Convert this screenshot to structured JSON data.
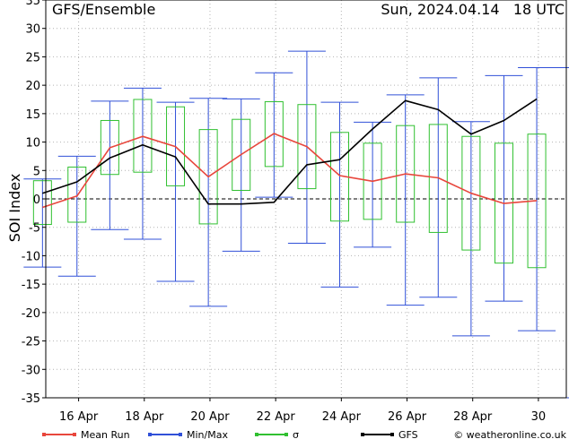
{
  "chart_data": {
    "type": "line",
    "title": "GFS/Ensemble",
    "run_label": "Sun, 2024.04.14   18 UTC",
    "ylabel": "SOI Index",
    "ylim": [
      -35,
      35
    ],
    "yticks": [
      -35,
      -30,
      -25,
      -20,
      -15,
      -10,
      -5,
      0,
      5,
      10,
      15,
      20,
      25,
      30,
      35
    ],
    "xlim": [
      15.0,
      30.85
    ],
    "xticks": [
      {
        "x": 16,
        "label": "16 Apr"
      },
      {
        "x": 18,
        "label": "18 Apr"
      },
      {
        "x": 20,
        "label": "20 Apr"
      },
      {
        "x": 22,
        "label": "22 Apr"
      },
      {
        "x": 24,
        "label": "24 Apr"
      },
      {
        "x": 26,
        "label": "26 Apr"
      },
      {
        "x": 28,
        "label": "28 Apr"
      },
      {
        "x": 30,
        "label": "30"
      }
    ],
    "x": [
      14.9,
      15.95,
      16.95,
      17.95,
      18.95,
      19.95,
      20.95,
      21.95,
      22.95,
      23.95,
      24.95,
      25.95,
      26.95,
      27.95,
      28.95,
      29.95,
      30.85
    ],
    "series": [
      {
        "name": "Mean Run",
        "color": "#e8463c",
        "values": [
          -1.5,
          0.5,
          9.0,
          11.0,
          9.2,
          3.9,
          7.8,
          11.5,
          9.2,
          4.1,
          3.1,
          4.4,
          3.7,
          1.0,
          -0.8,
          -0.3,
          null
        ]
      },
      {
        "name": "GFS",
        "color": "#000000",
        "values": [
          1.0,
          3.0,
          7.2,
          9.5,
          7.4,
          -0.9,
          -0.9,
          -0.6,
          6.0,
          6.9,
          12.3,
          17.3,
          15.7,
          11.4,
          13.8,
          17.6,
          null
        ]
      }
    ],
    "min_max": {
      "name": "Min/Max",
      "color": "#3050d8",
      "min": [
        -12.0,
        -13.6,
        -5.4,
        -7.1,
        -14.5,
        -18.9,
        -9.2,
        0.3,
        -7.8,
        -15.5,
        -8.5,
        -18.7,
        -17.3,
        -24.1,
        -18.0,
        -23.2,
        -35.0
      ],
      "max": [
        3.5,
        7.5,
        17.2,
        19.5,
        17.0,
        17.7,
        17.6,
        22.2,
        26.0,
        17.0,
        13.5,
        18.3,
        21.3,
        13.6,
        21.7,
        23.1,
        23.1
      ]
    },
    "sigma": {
      "name": "σ",
      "color": "#30c030",
      "low": [
        -4.5,
        -4.1,
        4.3,
        4.7,
        2.3,
        -4.4,
        1.5,
        5.7,
        1.8,
        -3.9,
        -3.6,
        -4.1,
        -5.9,
        -9.0,
        -11.3,
        -12.1,
        null
      ],
      "high": [
        3.2,
        5.6,
        13.8,
        17.5,
        16.2,
        12.2,
        14.0,
        17.1,
        16.6,
        11.7,
        9.8,
        12.9,
        13.1,
        11.0,
        9.8,
        11.4,
        null
      ]
    },
    "grid": true,
    "legend": "bottom",
    "credit": "© weatheronline.co.uk"
  }
}
